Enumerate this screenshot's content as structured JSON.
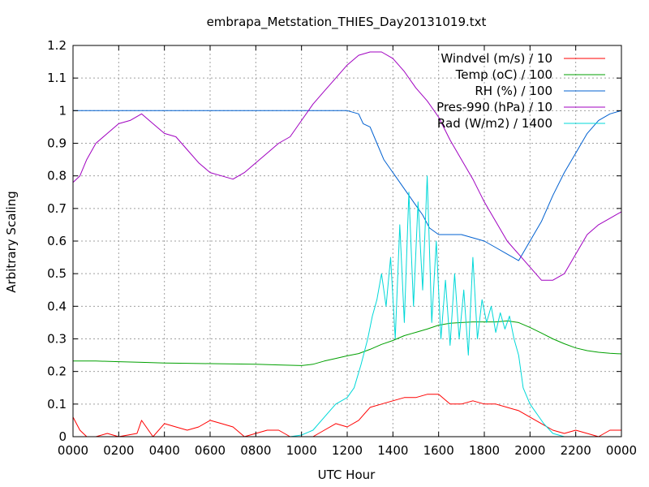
{
  "chart_data": {
    "type": "line",
    "title": "embrapa_Metstation_THIES_Day20131019.txt",
    "xlabel": "UTC Hour",
    "ylabel": "Arbitrary Scaling",
    "xlim": [
      0,
      24
    ],
    "ylim": [
      0,
      1.2
    ],
    "grid": true,
    "legend_position": "top-right",
    "x_tick_labels": [
      "0000",
      "0200",
      "0400",
      "0600",
      "0800",
      "1000",
      "1200",
      "1400",
      "1600",
      "1800",
      "2000",
      "2200",
      "0000"
    ],
    "y_tick_labels": [
      "0",
      "0.1",
      "0.2",
      "0.3",
      "0.4",
      "0.5",
      "0.6",
      "0.7",
      "0.8",
      "0.9",
      "1",
      "1.1",
      "1.2"
    ],
    "series": [
      {
        "name": "Windvel (m/s) / 10",
        "color": "#ff0000",
        "points": [
          [
            0,
            0.06
          ],
          [
            0.3,
            0.02
          ],
          [
            0.6,
            0.0
          ],
          [
            1.0,
            0.0
          ],
          [
            1.5,
            0.01
          ],
          [
            2.0,
            0.0
          ],
          [
            2.8,
            0.01
          ],
          [
            3.0,
            0.05
          ],
          [
            3.5,
            0.0
          ],
          [
            4.0,
            0.04
          ],
          [
            4.5,
            0.03
          ],
          [
            5.0,
            0.02
          ],
          [
            5.5,
            0.03
          ],
          [
            6.0,
            0.05
          ],
          [
            6.5,
            0.04
          ],
          [
            7.0,
            0.03
          ],
          [
            7.5,
            0.0
          ],
          [
            8.0,
            0.01
          ],
          [
            8.5,
            0.02
          ],
          [
            9.0,
            0.02
          ],
          [
            9.5,
            0.0
          ],
          [
            10.0,
            0.0
          ],
          [
            10.5,
            0.0
          ],
          [
            11.0,
            0.02
          ],
          [
            11.5,
            0.04
          ],
          [
            12.0,
            0.03
          ],
          [
            12.5,
            0.05
          ],
          [
            13.0,
            0.09
          ],
          [
            13.5,
            0.1
          ],
          [
            14.0,
            0.11
          ],
          [
            14.5,
            0.12
          ],
          [
            15.0,
            0.12
          ],
          [
            15.5,
            0.13
          ],
          [
            16.0,
            0.13
          ],
          [
            16.5,
            0.1
          ],
          [
            17.0,
            0.1
          ],
          [
            17.5,
            0.11
          ],
          [
            18.0,
            0.1
          ],
          [
            18.5,
            0.1
          ],
          [
            19.0,
            0.09
          ],
          [
            19.5,
            0.08
          ],
          [
            20.0,
            0.06
          ],
          [
            20.5,
            0.04
          ],
          [
            21.0,
            0.02
          ],
          [
            21.5,
            0.01
          ],
          [
            22.0,
            0.02
          ],
          [
            22.5,
            0.01
          ],
          [
            23.0,
            0.0
          ],
          [
            23.5,
            0.02
          ],
          [
            24.0,
            0.02
          ]
        ]
      },
      {
        "name": "Temp (oC) / 100",
        "color": "#00a000",
        "points": [
          [
            0,
            0.232
          ],
          [
            1,
            0.232
          ],
          [
            2,
            0.23
          ],
          [
            3,
            0.228
          ],
          [
            4,
            0.226
          ],
          [
            5,
            0.225
          ],
          [
            6,
            0.224
          ],
          [
            7,
            0.223
          ],
          [
            8,
            0.222
          ],
          [
            9,
            0.22
          ],
          [
            10,
            0.218
          ],
          [
            10.5,
            0.222
          ],
          [
            11,
            0.232
          ],
          [
            11.5,
            0.24
          ],
          [
            12,
            0.248
          ],
          [
            12.5,
            0.255
          ],
          [
            13,
            0.268
          ],
          [
            13.5,
            0.283
          ],
          [
            14,
            0.295
          ],
          [
            14.5,
            0.31
          ],
          [
            15,
            0.32
          ],
          [
            15.5,
            0.33
          ],
          [
            16,
            0.342
          ],
          [
            16.5,
            0.348
          ],
          [
            17,
            0.35
          ],
          [
            17.5,
            0.352
          ],
          [
            18,
            0.352
          ],
          [
            18.5,
            0.352
          ],
          [
            19,
            0.355
          ],
          [
            19.5,
            0.35
          ],
          [
            20,
            0.335
          ],
          [
            20.5,
            0.318
          ],
          [
            21,
            0.3
          ],
          [
            21.5,
            0.285
          ],
          [
            22,
            0.272
          ],
          [
            22.5,
            0.264
          ],
          [
            23,
            0.259
          ],
          [
            23.5,
            0.256
          ],
          [
            24,
            0.254
          ]
        ]
      },
      {
        "name": "RH (%) / 100",
        "color": "#0060d0",
        "points": [
          [
            0,
            1.0
          ],
          [
            1,
            1.0
          ],
          [
            2,
            1.0
          ],
          [
            3,
            1.0
          ],
          [
            4,
            1.0
          ],
          [
            5,
            1.0
          ],
          [
            6,
            1.0
          ],
          [
            7,
            1.0
          ],
          [
            8,
            1.0
          ],
          [
            9,
            1.0
          ],
          [
            10,
            1.0
          ],
          [
            11,
            1.0
          ],
          [
            12,
            1.0
          ],
          [
            12.5,
            0.99
          ],
          [
            12.7,
            0.96
          ],
          [
            13,
            0.95
          ],
          [
            13.3,
            0.9
          ],
          [
            13.6,
            0.85
          ],
          [
            13.9,
            0.82
          ],
          [
            14.2,
            0.79
          ],
          [
            14.5,
            0.76
          ],
          [
            14.8,
            0.73
          ],
          [
            15.0,
            0.71
          ],
          [
            15.3,
            0.68
          ],
          [
            15.6,
            0.64
          ],
          [
            16.0,
            0.62
          ],
          [
            16.5,
            0.62
          ],
          [
            17.0,
            0.62
          ],
          [
            17.5,
            0.61
          ],
          [
            18.0,
            0.6
          ],
          [
            18.5,
            0.58
          ],
          [
            19.0,
            0.56
          ],
          [
            19.5,
            0.54
          ],
          [
            20.0,
            0.6
          ],
          [
            20.5,
            0.66
          ],
          [
            21.0,
            0.74
          ],
          [
            21.5,
            0.81
          ],
          [
            22.0,
            0.87
          ],
          [
            22.5,
            0.93
          ],
          [
            23.0,
            0.97
          ],
          [
            23.5,
            0.99
          ],
          [
            24.0,
            1.0
          ]
        ]
      },
      {
        "name": "Pres-990 (hPa) / 10",
        "color": "#a000c0",
        "points": [
          [
            0,
            0.78
          ],
          [
            0.3,
            0.8
          ],
          [
            0.6,
            0.85
          ],
          [
            1.0,
            0.9
          ],
          [
            1.5,
            0.93
          ],
          [
            2.0,
            0.96
          ],
          [
            2.5,
            0.97
          ],
          [
            3.0,
            0.99
          ],
          [
            3.5,
            0.96
          ],
          [
            4.0,
            0.93
          ],
          [
            4.5,
            0.92
          ],
          [
            5.0,
            0.88
          ],
          [
            5.5,
            0.84
          ],
          [
            6.0,
            0.81
          ],
          [
            6.5,
            0.8
          ],
          [
            7.0,
            0.79
          ],
          [
            7.5,
            0.81
          ],
          [
            8.0,
            0.84
          ],
          [
            8.5,
            0.87
          ],
          [
            9.0,
            0.9
          ],
          [
            9.5,
            0.92
          ],
          [
            10.0,
            0.97
          ],
          [
            10.5,
            1.02
          ],
          [
            11.0,
            1.06
          ],
          [
            11.5,
            1.1
          ],
          [
            12.0,
            1.14
          ],
          [
            12.5,
            1.17
          ],
          [
            13.0,
            1.18
          ],
          [
            13.5,
            1.18
          ],
          [
            14.0,
            1.16
          ],
          [
            14.5,
            1.12
          ],
          [
            15.0,
            1.07
          ],
          [
            15.5,
            1.03
          ],
          [
            16.0,
            0.98
          ],
          [
            16.5,
            0.91
          ],
          [
            17.0,
            0.85
          ],
          [
            17.5,
            0.79
          ],
          [
            18.0,
            0.72
          ],
          [
            18.5,
            0.66
          ],
          [
            19.0,
            0.6
          ],
          [
            19.5,
            0.56
          ],
          [
            20.0,
            0.52
          ],
          [
            20.5,
            0.48
          ],
          [
            21.0,
            0.48
          ],
          [
            21.5,
            0.5
          ],
          [
            22.0,
            0.56
          ],
          [
            22.5,
            0.62
          ],
          [
            23.0,
            0.65
          ],
          [
            23.5,
            0.67
          ],
          [
            24.0,
            0.69
          ]
        ]
      },
      {
        "name": "Rad (W/m2) / 1400",
        "color": "#00d8d8",
        "points": [
          [
            0,
            0.0
          ],
          [
            9.5,
            0.0
          ],
          [
            10.0,
            0.005
          ],
          [
            10.5,
            0.02
          ],
          [
            11.0,
            0.06
          ],
          [
            11.5,
            0.1
          ],
          [
            12.0,
            0.12
          ],
          [
            12.3,
            0.15
          ],
          [
            12.6,
            0.22
          ],
          [
            12.9,
            0.3
          ],
          [
            13.1,
            0.37
          ],
          [
            13.3,
            0.42
          ],
          [
            13.5,
            0.5
          ],
          [
            13.7,
            0.4
          ],
          [
            13.9,
            0.55
          ],
          [
            14.1,
            0.3
          ],
          [
            14.3,
            0.65
          ],
          [
            14.5,
            0.35
          ],
          [
            14.7,
            0.75
          ],
          [
            14.9,
            0.4
          ],
          [
            15.1,
            0.72
          ],
          [
            15.3,
            0.45
          ],
          [
            15.5,
            0.8
          ],
          [
            15.7,
            0.35
          ],
          [
            15.9,
            0.6
          ],
          [
            16.1,
            0.3
          ],
          [
            16.3,
            0.48
          ],
          [
            16.5,
            0.28
          ],
          [
            16.7,
            0.5
          ],
          [
            16.9,
            0.3
          ],
          [
            17.1,
            0.45
          ],
          [
            17.3,
            0.25
          ],
          [
            17.5,
            0.55
          ],
          [
            17.7,
            0.3
          ],
          [
            17.9,
            0.42
          ],
          [
            18.1,
            0.35
          ],
          [
            18.3,
            0.4
          ],
          [
            18.5,
            0.32
          ],
          [
            18.7,
            0.38
          ],
          [
            18.9,
            0.33
          ],
          [
            19.1,
            0.37
          ],
          [
            19.3,
            0.3
          ],
          [
            19.5,
            0.25
          ],
          [
            19.7,
            0.15
          ],
          [
            20.0,
            0.1
          ],
          [
            20.3,
            0.07
          ],
          [
            20.6,
            0.04
          ],
          [
            21.0,
            0.01
          ],
          [
            21.5,
            0.0
          ],
          [
            24.0,
            0.0
          ]
        ]
      }
    ]
  }
}
